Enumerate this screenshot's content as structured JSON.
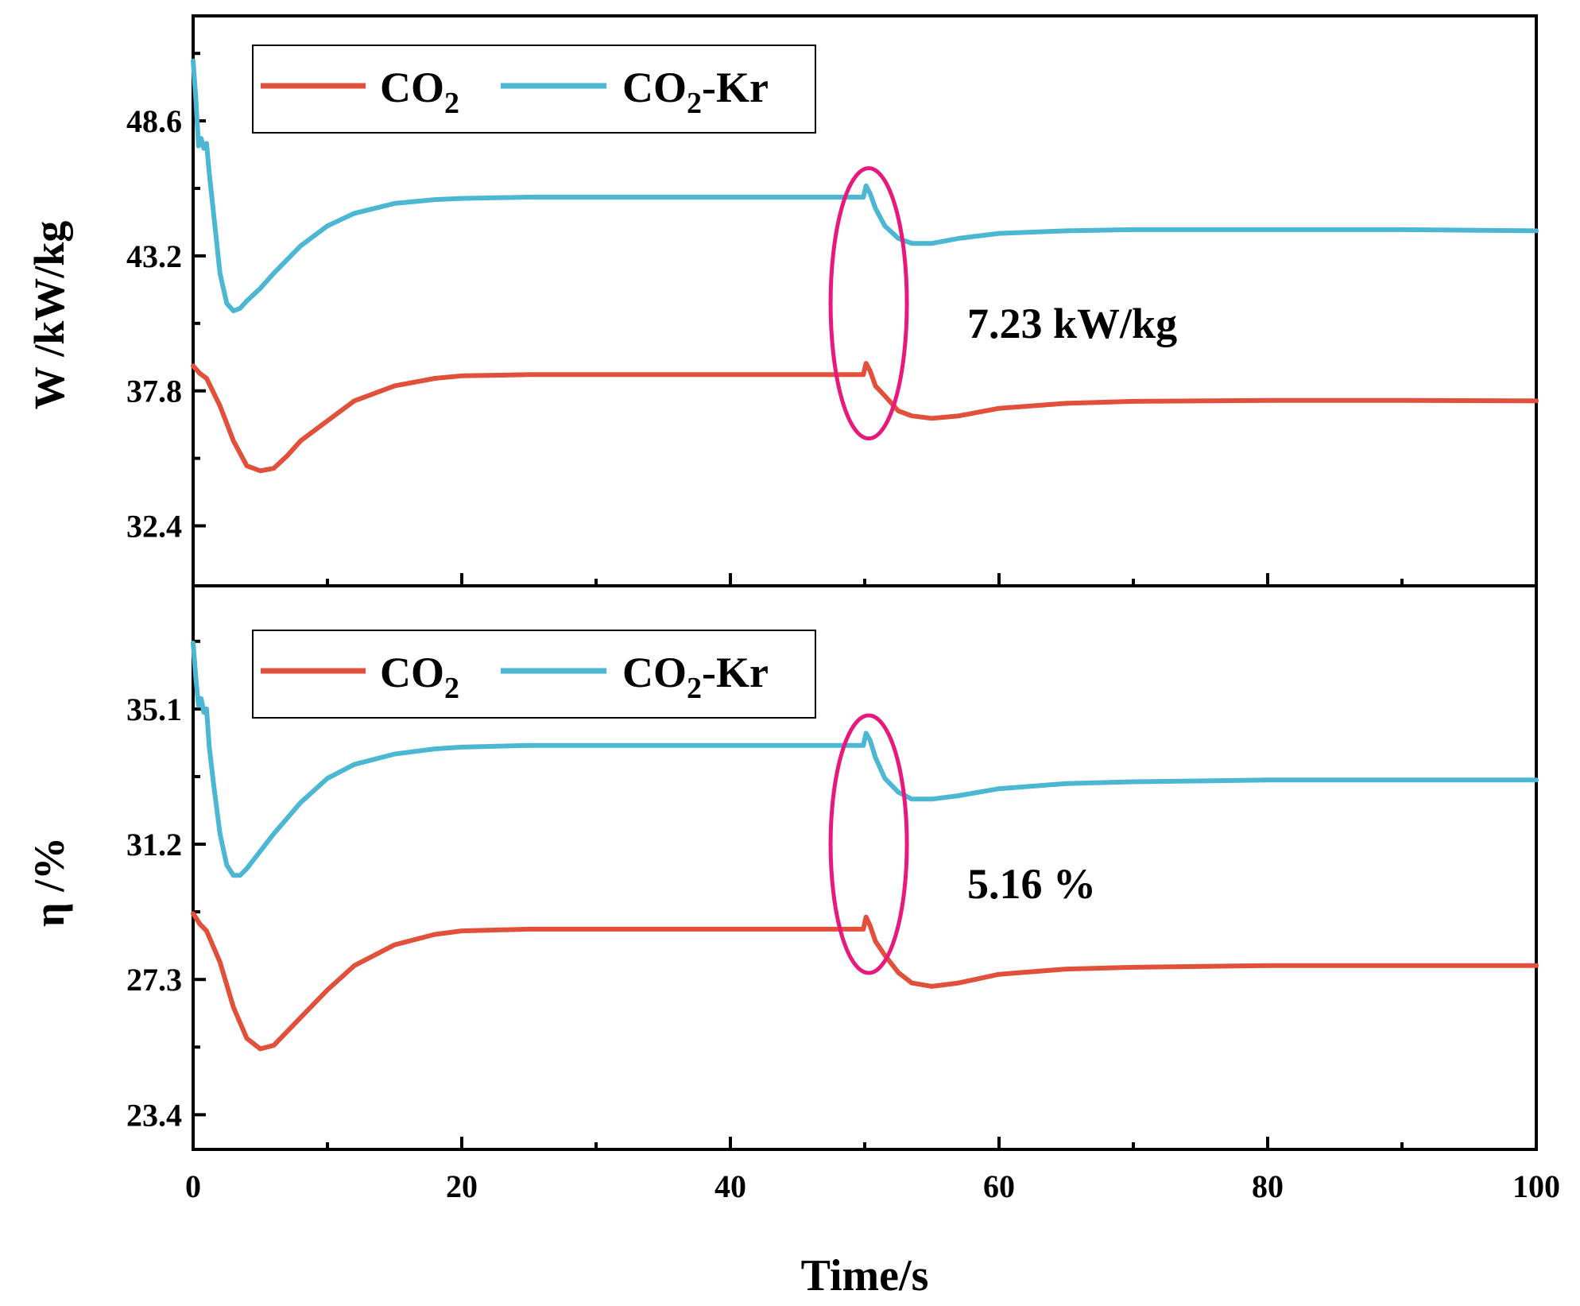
{
  "chart_data": [
    {
      "type": "line",
      "panel": "top",
      "ylabel": "W /kW/kg",
      "xlim": [
        0,
        100
      ],
      "ylim": [
        30.0,
        52.8
      ],
      "yticks": [
        "48.6",
        "43.2",
        "37.8",
        "32.4"
      ],
      "ytick_values": [
        48.6,
        43.2,
        37.8,
        32.4
      ],
      "legend_position": "top-left",
      "annotation": "7.23 kW/kg",
      "highlight_x": 50.3,
      "highlight_y": 41.3,
      "series": [
        {
          "name_main": "CO",
          "name_sub": "2",
          "name_suffix": "",
          "color": "#e0503a",
          "x": [
            0,
            0.5,
            1,
            2,
            3,
            4,
            5,
            6,
            7,
            8,
            10,
            12,
            15,
            18,
            20,
            25,
            30,
            40,
            49.9,
            50.1,
            50.4,
            50.8,
            51.5,
            52.5,
            53.5,
            55,
            57,
            60,
            65,
            70,
            80,
            90,
            100
          ],
          "y": [
            38.8,
            38.5,
            38.3,
            37.2,
            35.8,
            34.8,
            34.6,
            34.7,
            35.2,
            35.8,
            36.6,
            37.4,
            38.0,
            38.3,
            38.4,
            38.45,
            38.45,
            38.45,
            38.45,
            38.9,
            38.6,
            38.0,
            37.6,
            37.0,
            36.8,
            36.7,
            36.8,
            37.1,
            37.3,
            37.38,
            37.42,
            37.42,
            37.4
          ]
        },
        {
          "name_main": "CO",
          "name_sub": "2",
          "name_suffix": "-Kr",
          "color": "#4bb7d2",
          "x": [
            0,
            0.2,
            0.4,
            0.6,
            0.8,
            1.0,
            1.2,
            1.5,
            2,
            2.5,
            3,
            3.5,
            4,
            5,
            6,
            8,
            10,
            12,
            15,
            18,
            20,
            25,
            30,
            40,
            49.9,
            50.1,
            50.4,
            50.8,
            51.5,
            52.5,
            53.5,
            55,
            57,
            60,
            65,
            70,
            80,
            90,
            100
          ],
          "y": [
            51.0,
            49.5,
            47.6,
            47.9,
            47.5,
            47.7,
            46.5,
            45.0,
            42.5,
            41.3,
            41.0,
            41.1,
            41.4,
            41.9,
            42.5,
            43.6,
            44.4,
            44.9,
            45.3,
            45.45,
            45.5,
            45.55,
            45.55,
            45.55,
            45.55,
            46.0,
            45.7,
            45.1,
            44.4,
            43.9,
            43.7,
            43.7,
            43.9,
            44.1,
            44.2,
            44.25,
            44.25,
            44.25,
            44.2
          ]
        }
      ]
    },
    {
      "type": "line",
      "panel": "bottom",
      "ylabel": "η /%",
      "xlabel": "Time/s",
      "xlim": [
        0,
        100
      ],
      "ylim": [
        22.4,
        38.65
      ],
      "xticks": [
        "0",
        "20",
        "40",
        "60",
        "80",
        "100"
      ],
      "xtick_values": [
        0,
        20,
        40,
        60,
        80,
        100
      ],
      "yticks": [
        "35.1",
        "31.2",
        "27.3",
        "23.4"
      ],
      "ytick_values": [
        35.1,
        31.2,
        27.3,
        23.4
      ],
      "legend_position": "top-left",
      "annotation": "5.16 %",
      "highlight_x": 50.3,
      "highlight_y": 31.2,
      "series": [
        {
          "name_main": "CO",
          "name_sub": "2",
          "name_suffix": "",
          "color": "#e0503a",
          "x": [
            0,
            0.5,
            1,
            2,
            3,
            4,
            5,
            6,
            7,
            8,
            10,
            12,
            15,
            18,
            20,
            25,
            30,
            40,
            49.9,
            50.1,
            50.4,
            50.8,
            51.5,
            52.5,
            53.5,
            55,
            57,
            60,
            65,
            70,
            80,
            90,
            100
          ],
          "y": [
            29.2,
            28.9,
            28.7,
            27.8,
            26.5,
            25.6,
            25.3,
            25.4,
            25.8,
            26.2,
            27.0,
            27.7,
            28.3,
            28.6,
            28.7,
            28.75,
            28.75,
            28.75,
            28.75,
            29.1,
            28.85,
            28.4,
            28.0,
            27.5,
            27.2,
            27.1,
            27.2,
            27.45,
            27.6,
            27.65,
            27.7,
            27.7,
            27.7
          ]
        },
        {
          "name_main": "CO",
          "name_sub": "2",
          "name_suffix": "-Kr",
          "color": "#4bb7d2",
          "x": [
            0,
            0.2,
            0.4,
            0.6,
            0.8,
            1.0,
            1.2,
            1.5,
            2,
            2.5,
            3,
            3.5,
            4,
            5,
            6,
            8,
            10,
            12,
            15,
            18,
            20,
            25,
            30,
            40,
            49.9,
            50.1,
            50.4,
            50.8,
            51.5,
            52.5,
            53.5,
            55,
            57,
            60,
            65,
            70,
            80,
            90,
            100
          ],
          "y": [
            37.0,
            36.0,
            35.2,
            35.4,
            35.0,
            35.1,
            34.0,
            33.0,
            31.5,
            30.6,
            30.3,
            30.3,
            30.5,
            31.0,
            31.5,
            32.4,
            33.1,
            33.5,
            33.8,
            33.95,
            34.0,
            34.05,
            34.05,
            34.05,
            34.05,
            34.4,
            34.2,
            33.7,
            33.1,
            32.7,
            32.5,
            32.5,
            32.6,
            32.8,
            32.95,
            33.0,
            33.05,
            33.05,
            33.05
          ]
        }
      ]
    }
  ],
  "colors": {
    "highlight": "#e8197c"
  }
}
